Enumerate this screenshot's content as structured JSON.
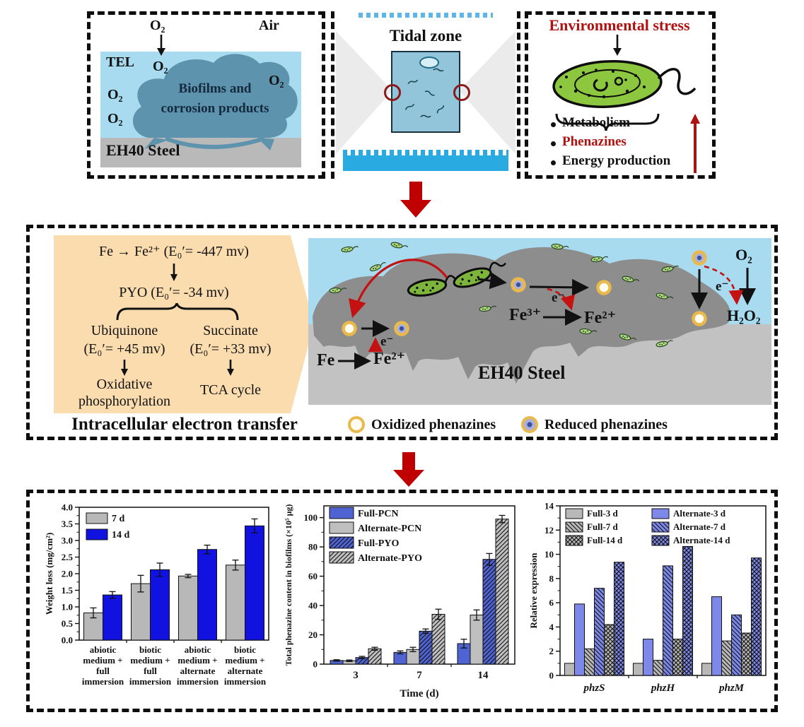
{
  "colors": {
    "sea": "#a8daf0",
    "biofilm_cloud": "#5e93ad",
    "steel_top": "#b9b9b9",
    "steel_mid": "#c2c2c2",
    "biofilm_mid": "#8d8d8d",
    "accent_red": "#c00000",
    "bacteria_green": "#8dc63f",
    "orange_panel": "#fbdcae",
    "tidal_bar": "#29abe2",
    "phenazine_ring": "#e9b94e",
    "reduced_core": "#3f4f9e",
    "chart1_blue": "#1112e0",
    "chart2_blue": "#4f63d2",
    "chart3_blue": "#7d88e8",
    "bar_gray": "#b8b8b8"
  },
  "top": {
    "left_panel": {
      "o2_top": "O₂",
      "air": "Air",
      "tel": "TEL",
      "o2_mid": "O₂",
      "o2_left_1": "O₂",
      "o2_left_2": "O₂",
      "o2_right": "O₂",
      "biofilm_line_1": "Biofilms and",
      "biofilm_line_2": "corrosion products",
      "steel": "EH40 Steel"
    },
    "tidal_panel": {
      "title": "Tidal zone"
    },
    "env_panel": {
      "title": "Environmental stress",
      "bullet_1": "Metabolism",
      "bullet_2": "Phenazines",
      "bullet_3": "Energy production"
    }
  },
  "middle": {
    "cascade": {
      "step_1": "Fe → Fe²⁺ (E₀′= -447 mv)",
      "step_2": "PYO (E₀′= -34 mv)",
      "branch_left": "Ubiquinone",
      "branch_left_potential": "(E₀′= +45 mv)",
      "branch_left_result_1": "Oxidative",
      "branch_left_result_2": "phosphorylation",
      "branch_right": "Succinate",
      "branch_right_potential": "(E₀′= +33 mv)",
      "branch_right_result": "TCA cycle",
      "caption": "Intracellular electron transfer"
    },
    "illustration": {
      "fe": "Fe",
      "fe2_left": "Fe²⁺",
      "e_left": "e⁻",
      "fe3": "Fe³⁺",
      "fe2_mid": "Fe²⁺",
      "e_mid": "e⁻",
      "e_right": "e⁻",
      "o2": "O₂",
      "h2o2": "H₂O₂",
      "steel": "EH40 Steel"
    },
    "legend": {
      "oxidized": "Oxidized phenazines",
      "reduced": "Reduced phenazines"
    }
  },
  "chart_data": [
    {
      "type": "bar",
      "title": "",
      "xlabel": "",
      "ylabel": "Weight loss (mg/cm²)",
      "ylim": [
        0,
        4.0
      ],
      "ytick_step": 0.5,
      "ytick_max": 4.0,
      "minor_step": 0.25,
      "grid": false,
      "legend_position": "top-left",
      "categories": [
        [
          "abiotic",
          "medium +",
          "full",
          "immersion"
        ],
        [
          "biotic",
          "medium +",
          "full",
          "immersion"
        ],
        [
          "abiotic",
          "medium +",
          "alternate",
          "immersion"
        ],
        [
          "biotic",
          "medium +",
          "alternate",
          "immersion"
        ]
      ],
      "series": [
        {
          "name": "7 d",
          "style": "solid",
          "color": "#b8b8b8",
          "values": [
            0.82,
            1.7,
            1.93,
            2.26
          ],
          "errors": [
            0.15,
            0.25,
            0.05,
            0.15
          ]
        },
        {
          "name": "14 d",
          "style": "solid",
          "color": "#1112e0",
          "values": [
            1.36,
            2.12,
            2.73,
            3.44
          ],
          "errors": [
            0.1,
            0.2,
            0.13,
            0.21
          ]
        }
      ]
    },
    {
      "type": "bar",
      "title": "",
      "xlabel": "Time (d)",
      "ylabel": "Total phenazine content in biofilms (×10⁵ μg)",
      "ylim": [
        0,
        108
      ],
      "ytick_step": 20,
      "ytick_max": 100,
      "minor_step": 10,
      "grid": false,
      "legend_position": "top-left",
      "categories": [
        "3",
        "7",
        "14"
      ],
      "series": [
        {
          "name": "Full-PCN",
          "style": "solid",
          "color": "#4f63d2",
          "values": [
            2.5,
            8,
            14
          ],
          "errors": [
            0.5,
            1.0,
            3.0
          ]
        },
        {
          "name": "Alternate-PCN",
          "style": "solid",
          "color": "#bfbfbf",
          "values": [
            2.3,
            10,
            33.5
          ],
          "errors": [
            0.5,
            1.5,
            3.5
          ]
        },
        {
          "name": "Full-PYO",
          "style": "diag",
          "color": "#4f63d2",
          "values": [
            4.5,
            22.5,
            71.5
          ],
          "errors": [
            0.8,
            1.5,
            4.0
          ]
        },
        {
          "name": "Alternate-PYO",
          "style": "diag",
          "color": "#bfbfbf",
          "values": [
            10.5,
            34,
            99
          ],
          "errors": [
            1.0,
            3.5,
            2.5
          ]
        }
      ]
    },
    {
      "type": "bar",
      "title": "",
      "xlabel": "",
      "ylabel": "Relative expression",
      "ylim": [
        0,
        14
      ],
      "ytick_step": 2,
      "ytick_max": 14,
      "minor_step": 1,
      "grid": false,
      "legend_position": "top-left",
      "categories": [
        "phzS",
        "phzH",
        "phzM"
      ],
      "series": [
        {
          "name": "Full-3 d",
          "style": "solid",
          "color": "#b8b8b8",
          "values": [
            1.0,
            1.0,
            1.0
          ]
        },
        {
          "name": "Alternate-3 d",
          "style": "solid",
          "color": "#7d88e8",
          "values": [
            5.9,
            3.0,
            6.5
          ]
        },
        {
          "name": "Full-7 d",
          "style": "diag-down",
          "color": "#b8b8b8",
          "values": [
            2.2,
            1.25,
            2.85
          ]
        },
        {
          "name": "Alternate-7 d",
          "style": "diag-down",
          "color": "#7d88e8",
          "values": [
            7.2,
            9.05,
            5.0
          ]
        },
        {
          "name": "Full-14 d",
          "style": "cross",
          "color": "#b8b8b8",
          "values": [
            4.2,
            3.0,
            3.5
          ]
        },
        {
          "name": "Alternate-14 d",
          "style": "cross",
          "color": "#7d88e8",
          "values": [
            9.35,
            10.65,
            9.7
          ]
        }
      ]
    }
  ]
}
